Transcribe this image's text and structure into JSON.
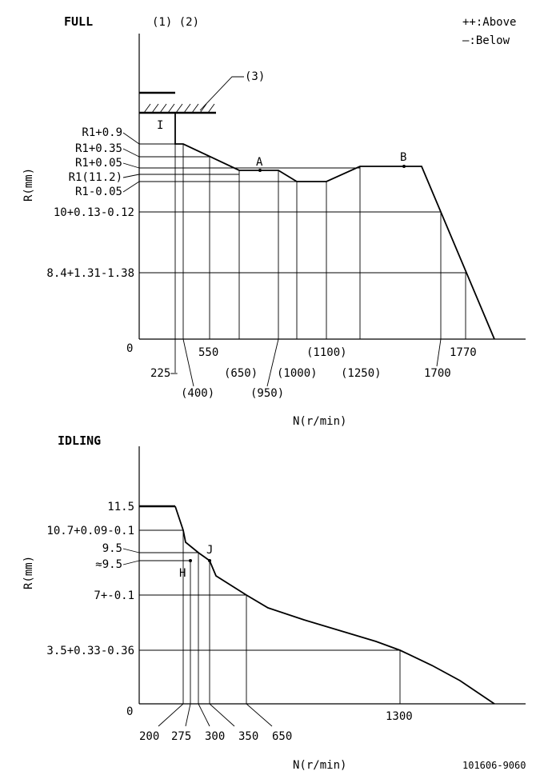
{
  "full": {
    "title": "FULL",
    "markers_top": "(1) (2)",
    "legend_above": "++:Above",
    "legend_below": "—:Below",
    "stop_label": "(3)",
    "point_I": "I",
    "point_A": "A",
    "point_B": "B",
    "y_axis_label": "R(mm)",
    "x_axis_label": "N(r/min)",
    "y_zero": "0",
    "y_labels": [
      "R1+0.9",
      "R1+0.35",
      "R1+0.05",
      "R1(11.2)",
      "R1-0.05",
      "10+0.13-0.12",
      "8.4+1.31-1.38"
    ],
    "x_labels": [
      "225—",
      "(400)",
      "550",
      "(650)",
      "(950)",
      "(1000)",
      "(1100)",
      "(1250)",
      "1700",
      "1770"
    ]
  },
  "idling": {
    "title": "IDLING",
    "point_H": "H",
    "point_J": "J",
    "y_axis_label": "R(mm)",
    "x_axis_label": "N(r/min)",
    "y_zero": "0",
    "y_labels": [
      "11.5",
      "10.7+0.09-0.1",
      "9.5",
      "≈9.5",
      "7+-0.1",
      "3.5+0.33-0.36"
    ],
    "x_labels": [
      "200",
      "275",
      "300",
      "350",
      "650",
      "1300"
    ]
  },
  "drawing_number": "101606-9060"
}
